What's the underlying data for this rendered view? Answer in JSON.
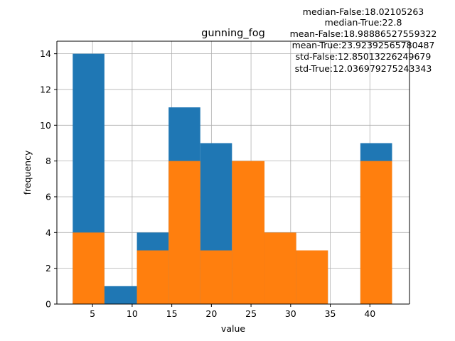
{
  "chart_data": {
    "type": "bar",
    "title": "gunning_fog",
    "xlabel": "value",
    "ylabel": "frequency",
    "xlim": [
      0.5,
      45
    ],
    "ylim": [
      0,
      14.7
    ],
    "xticks": [
      5,
      10,
      15,
      20,
      25,
      30,
      35,
      40
    ],
    "yticks": [
      0,
      2,
      4,
      6,
      8,
      10,
      12,
      14
    ],
    "grid": true,
    "annotations": [
      "median-False:18.02105263",
      "median-True:22.8",
      "mean-False:18.98886527559322",
      "mean-True:23.92392565780487",
      "std-False:12.85013226249679",
      "std-True:12.036979275243343"
    ],
    "series": [
      {
        "color": "#1f77b4",
        "bins": [
          {
            "x0": 2.5,
            "x1": 6.5,
            "value": 14
          },
          {
            "x0": 6.5,
            "x1": 10.6,
            "value": 1
          },
          {
            "x0": 10.6,
            "x1": 14.6,
            "value": 4
          },
          {
            "x0": 14.6,
            "x1": 18.6,
            "value": 11
          },
          {
            "x0": 18.6,
            "x1": 22.6,
            "value": 9
          },
          {
            "x0": 22.6,
            "x1": 26.7,
            "value": 8
          },
          {
            "x0": 26.7,
            "x1": 30.7,
            "value": 4
          },
          {
            "x0": 30.7,
            "x1": 34.7,
            "value": 3
          },
          {
            "x0": 34.7,
            "x1": 38.8,
            "value": 0
          },
          {
            "x0": 38.8,
            "x1": 42.8,
            "value": 9
          }
        ]
      },
      {
        "color": "#ff7f0e",
        "bins": [
          {
            "x0": 2.5,
            "x1": 6.5,
            "value": 4
          },
          {
            "x0": 6.5,
            "x1": 10.6,
            "value": 0
          },
          {
            "x0": 10.6,
            "x1": 14.6,
            "value": 3
          },
          {
            "x0": 14.6,
            "x1": 18.6,
            "value": 8
          },
          {
            "x0": 18.6,
            "x1": 22.6,
            "value": 3
          },
          {
            "x0": 22.6,
            "x1": 26.7,
            "value": 8
          },
          {
            "x0": 26.7,
            "x1": 30.7,
            "value": 4
          },
          {
            "x0": 30.7,
            "x1": 34.7,
            "value": 3
          },
          {
            "x0": 34.7,
            "x1": 38.8,
            "value": 0
          },
          {
            "x0": 38.8,
            "x1": 42.8,
            "value": 8
          }
        ]
      }
    ]
  }
}
